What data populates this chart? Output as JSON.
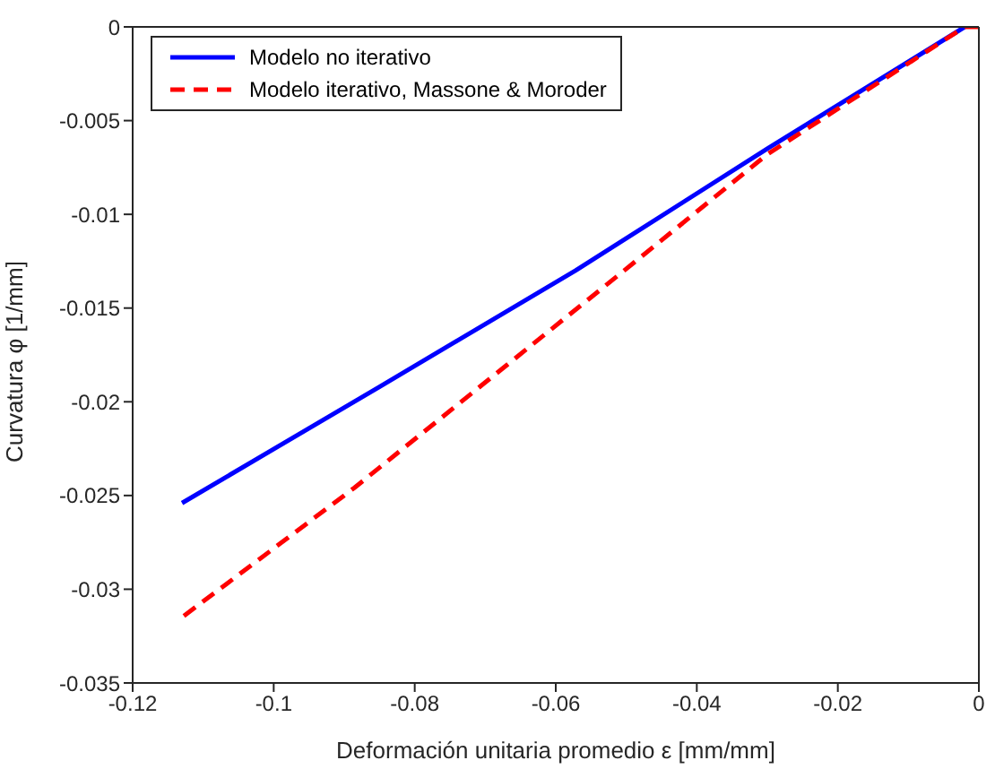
{
  "chart_data": {
    "type": "line",
    "xlabel": "Deformación unitaria promedio ε [mm/mm]",
    "ylabel": "Curvatura φ [1/mm]",
    "xlim": [
      -0.12,
      0
    ],
    "xticks": [
      -0.12,
      -0.1,
      -0.08,
      -0.06,
      -0.04,
      -0.02,
      0
    ],
    "ylim": [
      -0.035,
      0
    ],
    "yticks": [
      -0.035,
      -0.03,
      -0.025,
      -0.02,
      -0.015,
      -0.01,
      -0.005,
      0
    ],
    "grid": false,
    "legend": "top left",
    "marker": "none",
    "series": [
      {
        "name": "Modelo no iterativo",
        "color": "#0000ff",
        "line_style": "solid",
        "x": [
          -0.002,
          -0.03,
          -0.0572,
          -0.085,
          -0.113
        ],
        "values": [
          0,
          -0.0065,
          -0.013,
          -0.0192,
          -0.0254
        ]
      },
      {
        "name": "Modelo iterativo, Massone & Moroder",
        "color": "#ff0000",
        "line_style": "dashed",
        "x": [
          0,
          -0.002,
          -0.03,
          -0.0503,
          -0.0886,
          -0.113
        ],
        "values": [
          0,
          0,
          -0.0068,
          -0.013,
          -0.0246,
          -0.0315
        ]
      }
    ]
  }
}
